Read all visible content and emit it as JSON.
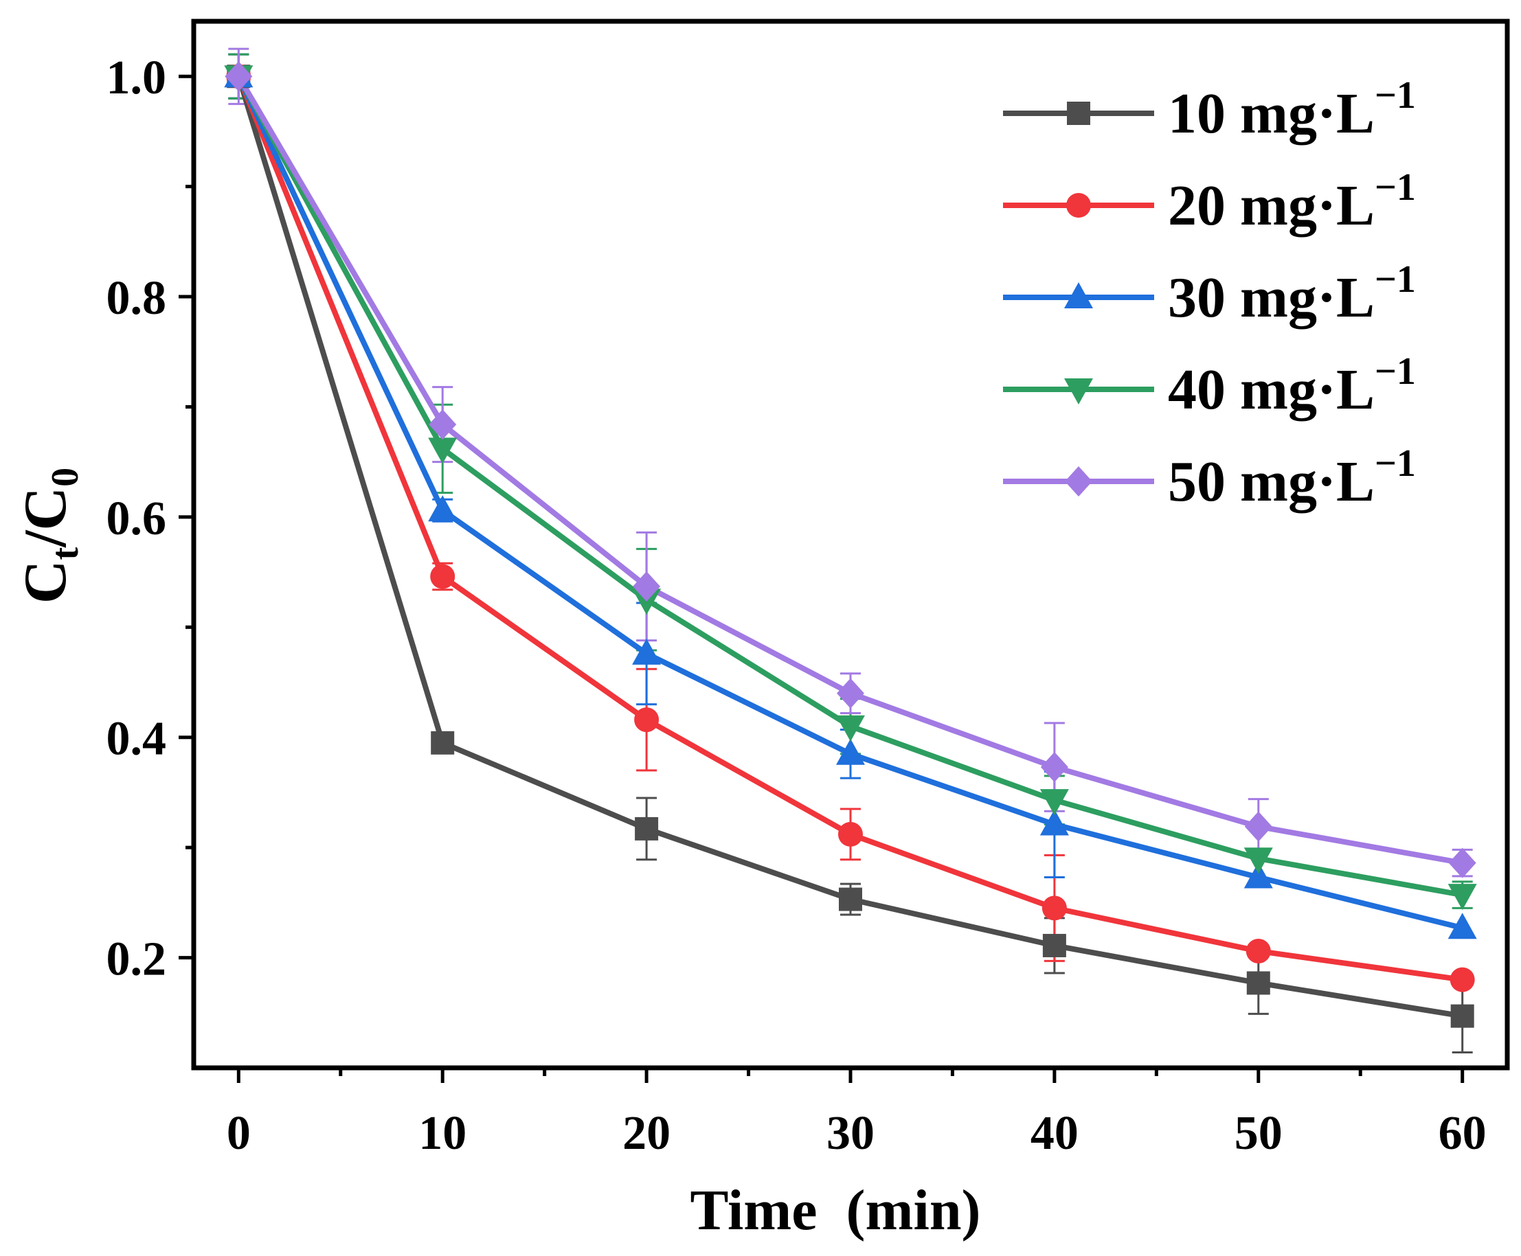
{
  "chart_data": {
    "type": "line",
    "title": "",
    "xlabel": "Time  (min)",
    "ylabel": {
      "main": "C",
      "sub1": "t",
      "sep": "/C",
      "sub2": "0"
    },
    "xlim": [
      -2.2,
      62.2
    ],
    "ylim": [
      0.1,
      1.05
    ],
    "xticks": [
      0,
      10,
      20,
      30,
      40,
      50,
      60
    ],
    "xtick_labels": [
      "0",
      "10",
      "20",
      "30",
      "40",
      "50",
      "60"
    ],
    "xminor": [
      5,
      15,
      25,
      35,
      45,
      55
    ],
    "yticks": [
      0.2,
      0.4,
      0.6,
      0.8,
      1.0
    ],
    "ytick_labels": [
      "0.2",
      "0.4",
      "0.6",
      "0.8",
      "1.0"
    ],
    "yminor": [
      0.3,
      0.5,
      0.7,
      0.9
    ],
    "legend_position": "top-right",
    "x": [
      0,
      10,
      20,
      30,
      40,
      50,
      60
    ],
    "series": [
      {
        "name": "10 mg·L",
        "sup": "−1",
        "color": "#4d4d4d",
        "marker": "square",
        "values": [
          1.0,
          0.395,
          0.317,
          0.253,
          0.211,
          0.177,
          0.147
        ],
        "errors": [
          0.02,
          0.0,
          0.028,
          0.014,
          0.025,
          0.028,
          0.033
        ]
      },
      {
        "name": "20 mg·L",
        "sup": "−1",
        "color": "#f0353b",
        "marker": "circle",
        "values": [
          1.0,
          0.546,
          0.416,
          0.312,
          0.245,
          0.206,
          0.18
        ],
        "errors": [
          0.02,
          0.012,
          0.046,
          0.023,
          0.048,
          0.0,
          0.0
        ]
      },
      {
        "name": "30 mg·L",
        "sup": "−1",
        "color": "#1f6fdc",
        "marker": "triangle-up",
        "values": [
          1.0,
          0.606,
          0.476,
          0.385,
          0.321,
          0.273,
          0.227
        ],
        "errors": [
          0.02,
          0.01,
          0.046,
          0.022,
          0.048,
          0.0,
          0.0
        ]
      },
      {
        "name": "40 mg·L",
        "sup": "−1",
        "color": "#2d9e60",
        "marker": "triangle-down",
        "values": [
          1.0,
          0.662,
          0.525,
          0.41,
          0.343,
          0.29,
          0.257
        ],
        "errors": [
          0.02,
          0.04,
          0.046,
          0.025,
          0.022,
          0.0,
          0.012
        ]
      },
      {
        "name": "50 mg·L",
        "sup": "−1",
        "color": "#a27ae3",
        "marker": "diamond",
        "values": [
          1.0,
          0.684,
          0.537,
          0.44,
          0.373,
          0.319,
          0.286
        ],
        "errors": [
          0.025,
          0.034,
          0.049,
          0.018,
          0.04,
          0.025,
          0.012
        ]
      }
    ]
  }
}
